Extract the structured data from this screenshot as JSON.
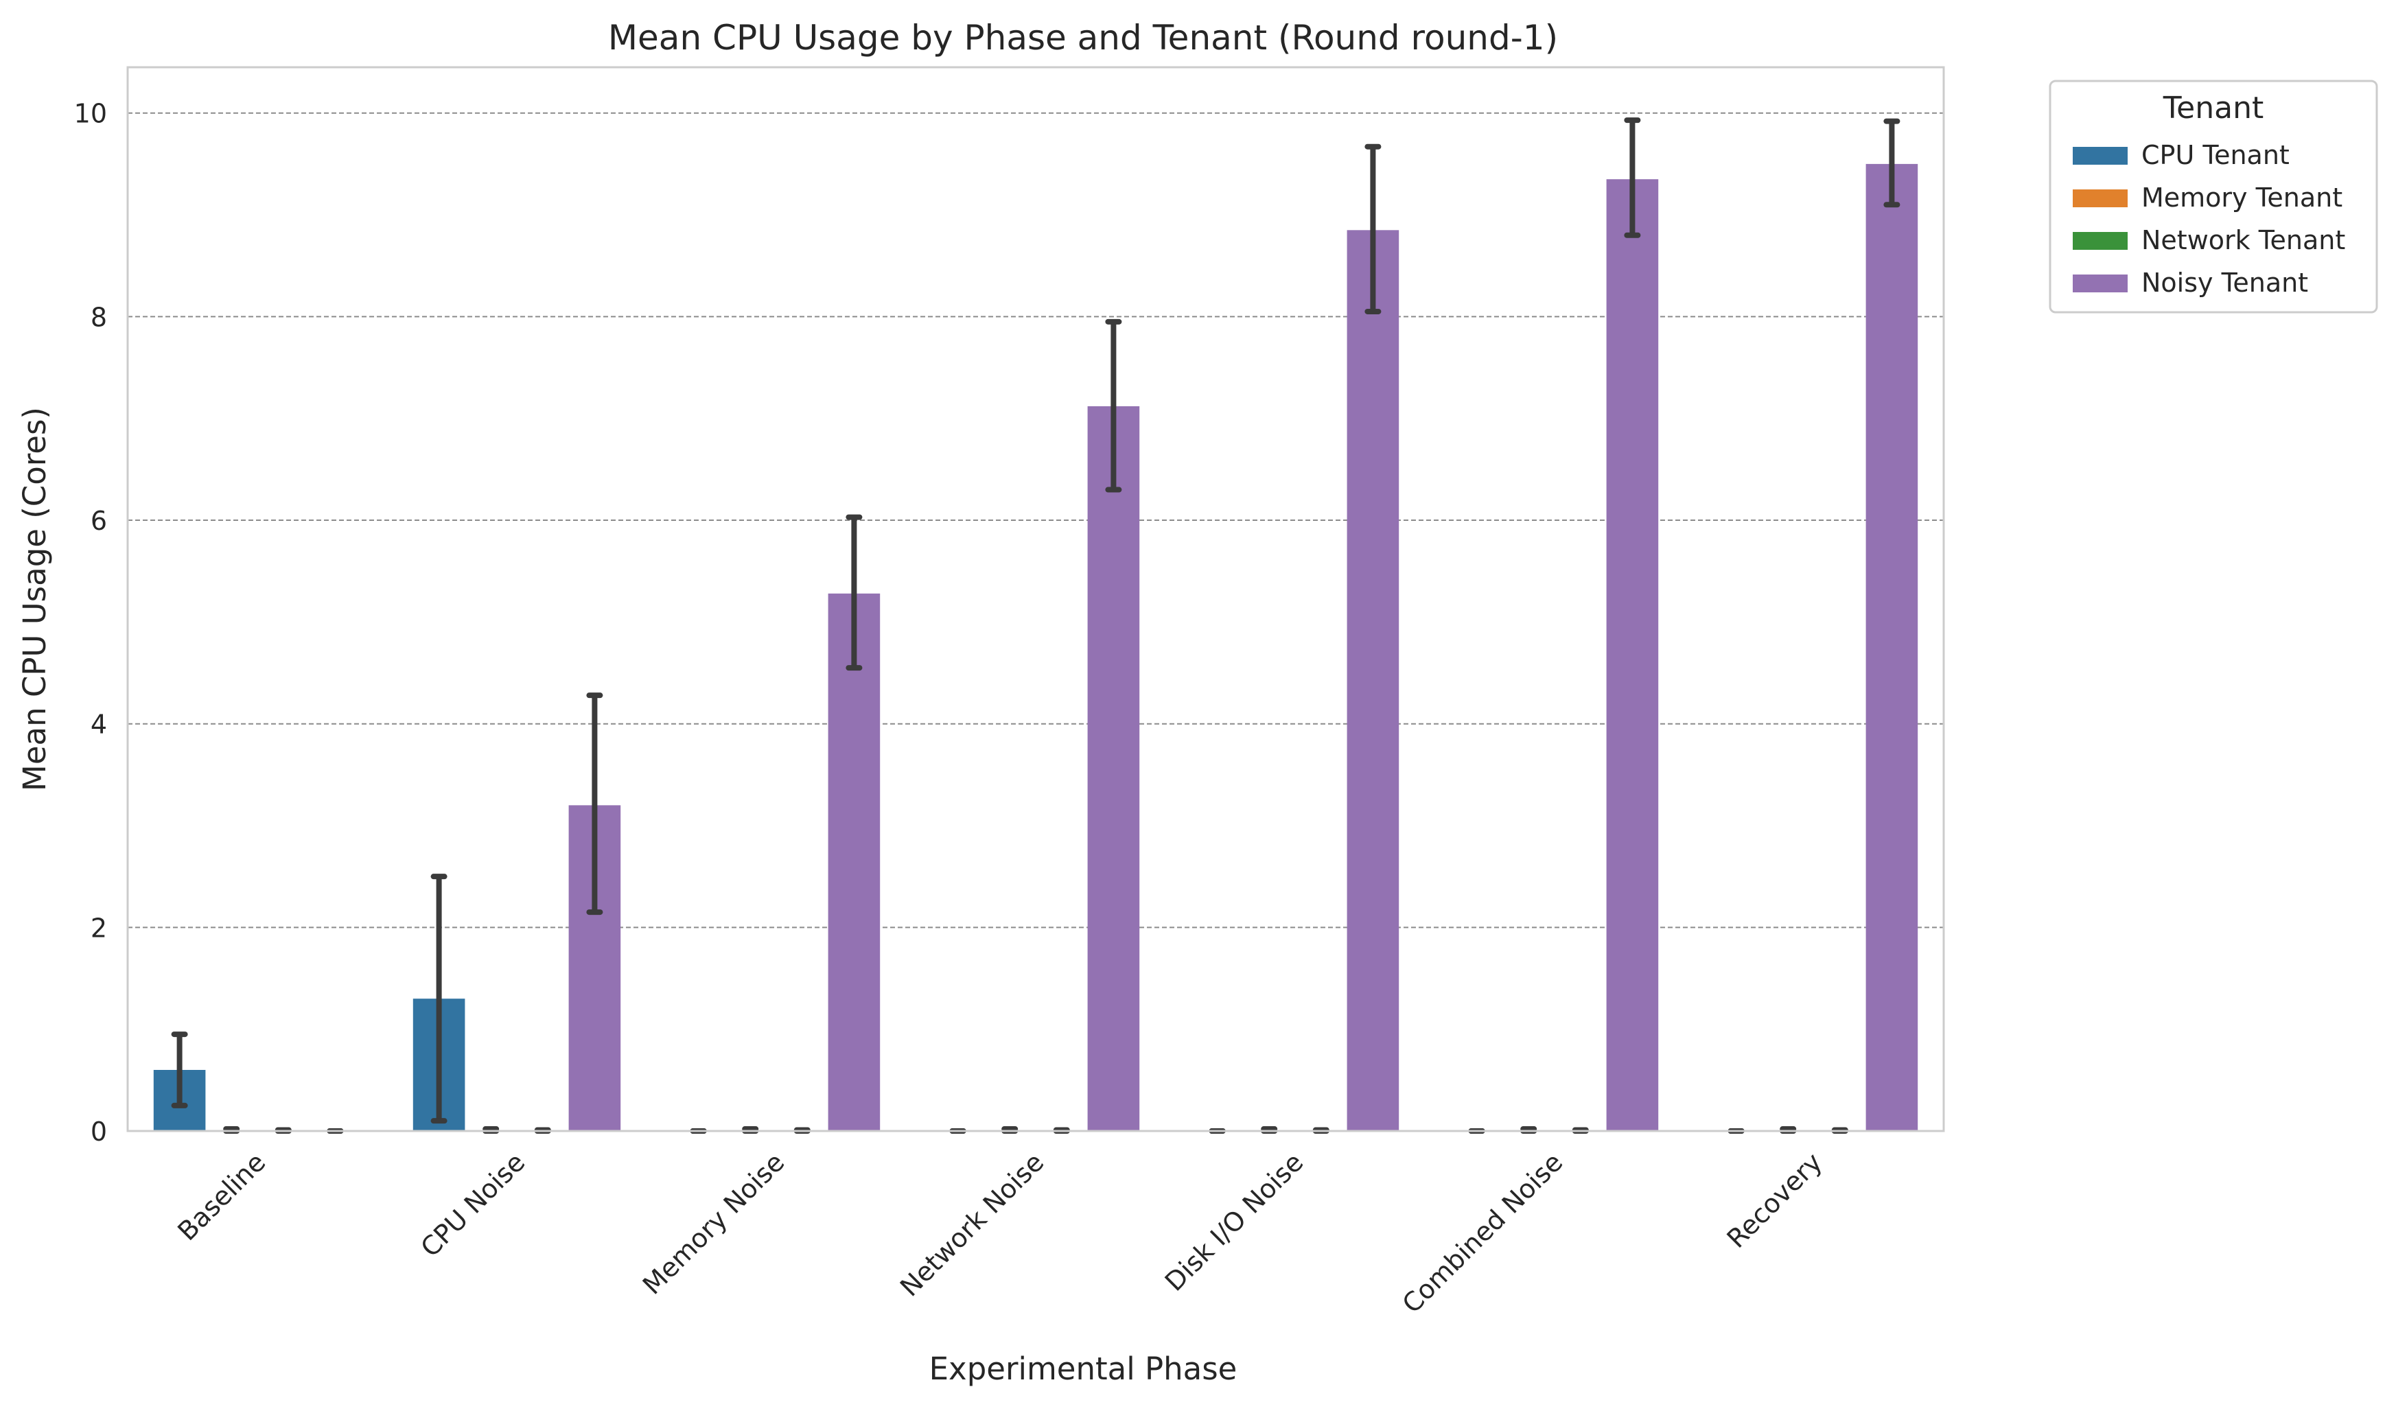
{
  "chart_data": {
    "type": "bar",
    "title": "Mean CPU Usage by Phase and Tenant (Round round-1)",
    "xlabel": "Experimental Phase",
    "ylabel": "Mean CPU Usage (Cores)",
    "ylim": [
      0,
      10.45
    ],
    "yticks": [
      0,
      2,
      4,
      6,
      8,
      10
    ],
    "grid": "horizontal dashed",
    "legend": {
      "title": "Tenant",
      "placement": "outside top-right"
    },
    "categories": [
      "Baseline",
      "CPU Noise",
      "Memory Noise",
      "Network Noise",
      "Disk I/O Noise",
      "Combined Noise",
      "Recovery"
    ],
    "series": [
      {
        "name": "CPU Tenant",
        "color": "#3274a1",
        "values": [
          0.6,
          1.3,
          0.0,
          0.0,
          0.0,
          0.0,
          0.0
        ],
        "err_low": [
          0.25,
          0.1,
          0.0,
          0.0,
          0.0,
          0.0,
          0.0
        ],
        "err_high": [
          0.95,
          2.5,
          0.0,
          0.0,
          0.0,
          0.0,
          0.0
        ]
      },
      {
        "name": "Memory Tenant",
        "color": "#e1812c",
        "values": [
          0.01,
          0.01,
          0.01,
          0.01,
          0.01,
          0.01,
          0.01
        ],
        "err_low": [
          0.0,
          0.0,
          0.0,
          0.0,
          0.0,
          0.0,
          0.0
        ],
        "err_high": [
          0.02,
          0.02,
          0.02,
          0.02,
          0.02,
          0.02,
          0.02
        ]
      },
      {
        "name": "Network Tenant",
        "color": "#3a923a",
        "values": [
          0.0,
          0.0,
          0.0,
          0.0,
          0.0,
          0.0,
          0.0
        ],
        "err_low": [
          0.0,
          0.0,
          0.0,
          0.0,
          0.0,
          0.0,
          0.0
        ],
        "err_high": [
          0.01,
          0.01,
          0.01,
          0.01,
          0.01,
          0.01,
          0.01
        ]
      },
      {
        "name": "Noisy Tenant",
        "color": "#9372b2",
        "values": [
          0.0,
          3.2,
          5.28,
          7.12,
          8.85,
          9.35,
          9.5
        ],
        "err_low": [
          0.0,
          2.15,
          4.55,
          6.3,
          8.05,
          8.8,
          9.1
        ],
        "err_high": [
          0.0,
          4.28,
          6.03,
          7.95,
          9.67,
          9.93,
          9.92
        ]
      }
    ]
  }
}
